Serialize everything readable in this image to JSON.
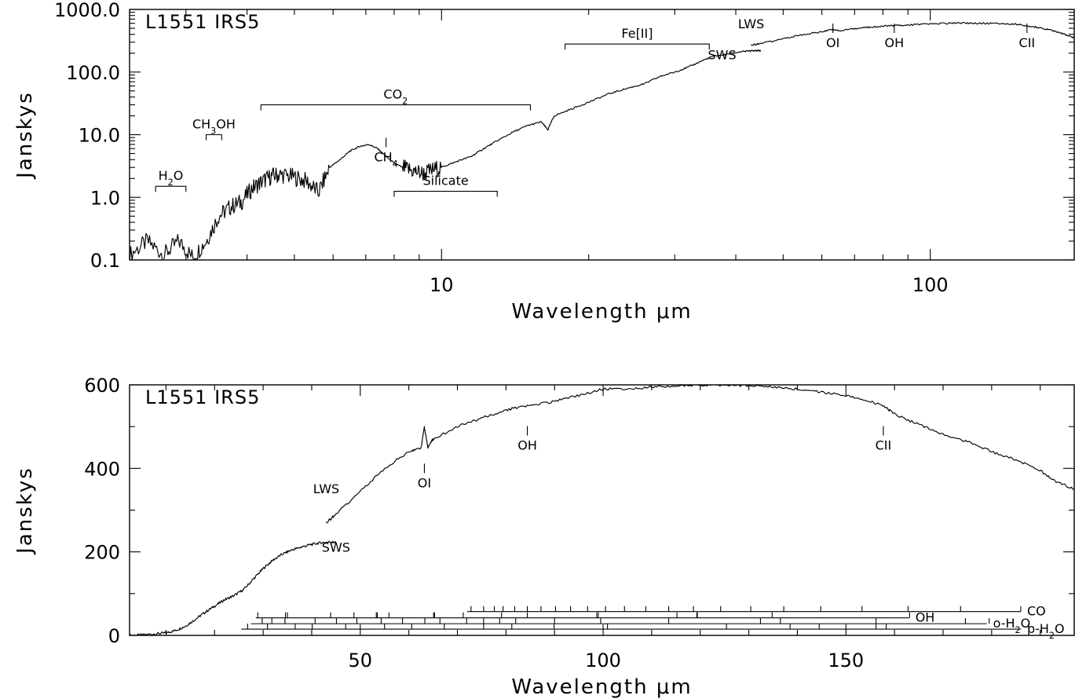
{
  "chart_data": [
    {
      "type": "line",
      "title": "L1551 IRS5",
      "xlabel": "Wavelength  μm",
      "ylabel": "Janskys",
      "xscale": "log",
      "yscale": "log",
      "xlim": [
        2.3,
        197
      ],
      "ylim": [
        0.1,
        1000
      ],
      "xticks": [
        {
          "v": 10,
          "label": "10"
        },
        {
          "v": 100,
          "label": "100"
        }
      ],
      "yticks": [
        {
          "v": 0.1,
          "label": "0.1"
        },
        {
          "v": 1,
          "label": "1.0"
        },
        {
          "v": 10,
          "label": "10.0"
        },
        {
          "v": 100,
          "label": "100.0"
        },
        {
          "v": 1000,
          "label": "1000.0"
        }
      ],
      "series": [
        {
          "name": "SWS",
          "x": [
            2.3,
            2.5,
            2.7,
            2.9,
            3.1,
            3.3,
            3.5,
            3.7,
            3.9,
            4.1,
            4.3,
            4.5,
            4.7,
            5.0,
            5.3,
            5.6,
            5.9,
            6.2,
            6.5,
            6.8,
            7.1,
            7.4,
            7.7,
            8.0,
            8.4,
            8.8,
            9.2,
            9.7,
            10.2,
            10.8,
            11.5,
            12.2,
            13.0,
            14.0,
            15.0,
            16.0,
            16.5,
            17.0,
            18.5,
            20.0,
            22.0,
            24.0,
            26.0,
            28.0,
            30.0,
            32.0,
            34.0,
            36.0,
            38.0,
            40.0,
            42.0,
            44.0,
            45.0
          ],
          "y": [
            0.12,
            0.2,
            0.12,
            0.2,
            0.11,
            0.2,
            0.5,
            0.7,
            0.85,
            1.4,
            1.8,
            2.2,
            2.3,
            2.1,
            1.8,
            1.2,
            3.0,
            4.0,
            5.5,
            6.5,
            7.0,
            6.0,
            4.5,
            3.5,
            2.9,
            2.6,
            2.4,
            2.8,
            3.2,
            3.8,
            4.5,
            6.0,
            8.0,
            11.0,
            14.0,
            16.0,
            12.0,
            20.0,
            26.0,
            33.0,
            45.0,
            55.0,
            65.0,
            85.0,
            100.0,
            120.0,
            150.0,
            180.0,
            190.0,
            205.0,
            215.0,
            220.0,
            220.0
          ]
        },
        {
          "name": "LWS",
          "x": [
            43,
            45,
            50,
            55,
            60,
            63.2,
            65,
            70,
            75,
            80,
            85,
            90,
            100,
            110,
            120,
            130,
            140,
            150,
            160,
            170,
            180,
            190,
            197
          ],
          "y": [
            270,
            285,
            340,
            400,
            440,
            480,
            460,
            490,
            520,
            540,
            555,
            565,
            590,
            600,
            605,
            600,
            595,
            580,
            540,
            500,
            450,
            390,
            350
          ]
        }
      ],
      "annotations": [
        {
          "text": "H2O",
          "range": [
            2.6,
            3.0
          ],
          "at": 1.5
        },
        {
          "text": "CH3OH",
          "range": [
            3.3,
            3.55
          ],
          "at": 10
        },
        {
          "text": "CO2",
          "range": [
            4.27,
            15.2
          ],
          "at": 30
        },
        {
          "text": "CH4",
          "at_x": 7.7,
          "at": 7.5
        },
        {
          "text": "Silicate",
          "range": [
            8.0,
            13.0
          ],
          "at": 1.25
        },
        {
          "text": "Fe[II]",
          "range": [
            17.9,
            35.3
          ],
          "at": 280
        },
        {
          "text": "SWS",
          "at_x": 37.5,
          "at": 160
        },
        {
          "text": "LWS",
          "at_x": 43,
          "at": 500
        },
        {
          "text": "OI",
          "at_x": 63.2,
          "at": 500
        },
        {
          "text": "OH",
          "at_x": 84.4,
          "at": 500
        },
        {
          "text": "CII",
          "at_x": 157.7,
          "at": 500
        }
      ]
    },
    {
      "type": "line",
      "title": "L1551 IRS5",
      "xlabel": "Wavelength  μm",
      "ylabel": "Janskys",
      "xscale": "linear",
      "yscale": "linear",
      "xlim": [
        2.5,
        197
      ],
      "ylim": [
        0,
        600
      ],
      "xticks": [
        {
          "v": 50,
          "label": "50"
        },
        {
          "v": 100,
          "label": "100"
        },
        {
          "v": 150,
          "label": "150"
        }
      ],
      "yticks": [
        {
          "v": 0,
          "label": "0"
        },
        {
          "v": 200,
          "label": "200"
        },
        {
          "v": 400,
          "label": "400"
        },
        {
          "v": 600,
          "label": "600"
        }
      ],
      "series": [
        {
          "name": "SWS",
          "x": [
            2.5,
            5,
            8,
            10,
            12,
            14,
            16,
            18,
            20,
            22,
            24,
            26,
            28,
            30,
            32,
            34,
            36,
            38,
            40,
            42,
            44,
            45
          ],
          "y": [
            0,
            1,
            4,
            6,
            12,
            22,
            38,
            55,
            70,
            85,
            95,
            110,
            135,
            160,
            180,
            195,
            205,
            212,
            218,
            222,
            224,
            222
          ]
        },
        {
          "name": "LWS",
          "x": [
            43,
            45,
            50,
            55,
            60,
            62.5,
            63.2,
            63.9,
            65,
            70,
            75,
            80,
            84.4,
            90,
            95,
            100,
            105,
            110,
            115,
            120,
            125,
            130,
            135,
            140,
            145,
            150,
            155,
            157.7,
            160,
            165,
            170,
            175,
            180,
            185,
            190,
            193,
            197
          ],
          "y": [
            270,
            290,
            345,
            400,
            440,
            448,
            500,
            450,
            470,
            500,
            520,
            540,
            550,
            560,
            575,
            590,
            590,
            595,
            598,
            600,
            600,
            598,
            595,
            590,
            582,
            575,
            560,
            550,
            530,
            505,
            480,
            465,
            440,
            420,
            395,
            370,
            350
          ]
        }
      ],
      "annotations": [
        {
          "text": "SWS",
          "at_x": 45,
          "at": 200
        },
        {
          "text": "LWS",
          "at_x": 43,
          "at": 340
        },
        {
          "text": "OI",
          "at_x": 63.2,
          "at": 400
        },
        {
          "text": "OH",
          "at_x": 84.4,
          "at": 490
        },
        {
          "text": "CII",
          "at_x": 157.7,
          "at": 490
        }
      ],
      "line_lists": [
        {
          "name": "CO",
          "range": [
            72,
            186
          ],
          "at": 57,
          "lines": [
            72.8,
            75.4,
            77.6,
            79.4,
            81.8,
            84.4,
            87.2,
            90.2,
            93.3,
            96.8,
            100.5,
            104.4,
            108.8,
            113.5,
            118.6,
            124.2,
            130.4,
            137.2,
            144.8,
            153.3,
            162.8,
            173.6,
            186.0
          ]
        },
        {
          "name": "OH",
          "range": [
            28.5,
            163
          ],
          "at": 42,
          "lines": [
            28.9,
            34.6,
            35.0,
            43.9,
            48.7,
            53.3,
            53.5,
            55.9,
            65.1,
            65.3,
            71.2,
            79.1,
            84.4,
            98.7,
            99.0,
            115.2,
            119.3,
            119.4,
            134.8,
            163.1
          ]
        },
        {
          "name": "o-H2O",
          "range": [
            27.5,
            179
          ],
          "at": 28,
          "lines": [
            29.8,
            31.8,
            34.5,
            40.7,
            45.1,
            49.3,
            54.3,
            58.7,
            63.3,
            66.4,
            71.9,
            75.4,
            78.7,
            82.0,
            90.0,
            99.5,
            113.5,
            132.4,
            136.5,
            156.2,
            174.6,
            179.5
          ]
        },
        {
          "name": "p-H2O",
          "range": [
            25.5,
            186
          ],
          "at": 15,
          "lines": [
            26.8,
            30.9,
            36.6,
            40.1,
            47.0,
            55.0,
            60.6,
            67.3,
            75.4,
            81.2,
            89.9,
            100.9,
            125.4,
            138.5,
            144.5,
            156.2,
            158.3
          ]
        }
      ]
    }
  ]
}
